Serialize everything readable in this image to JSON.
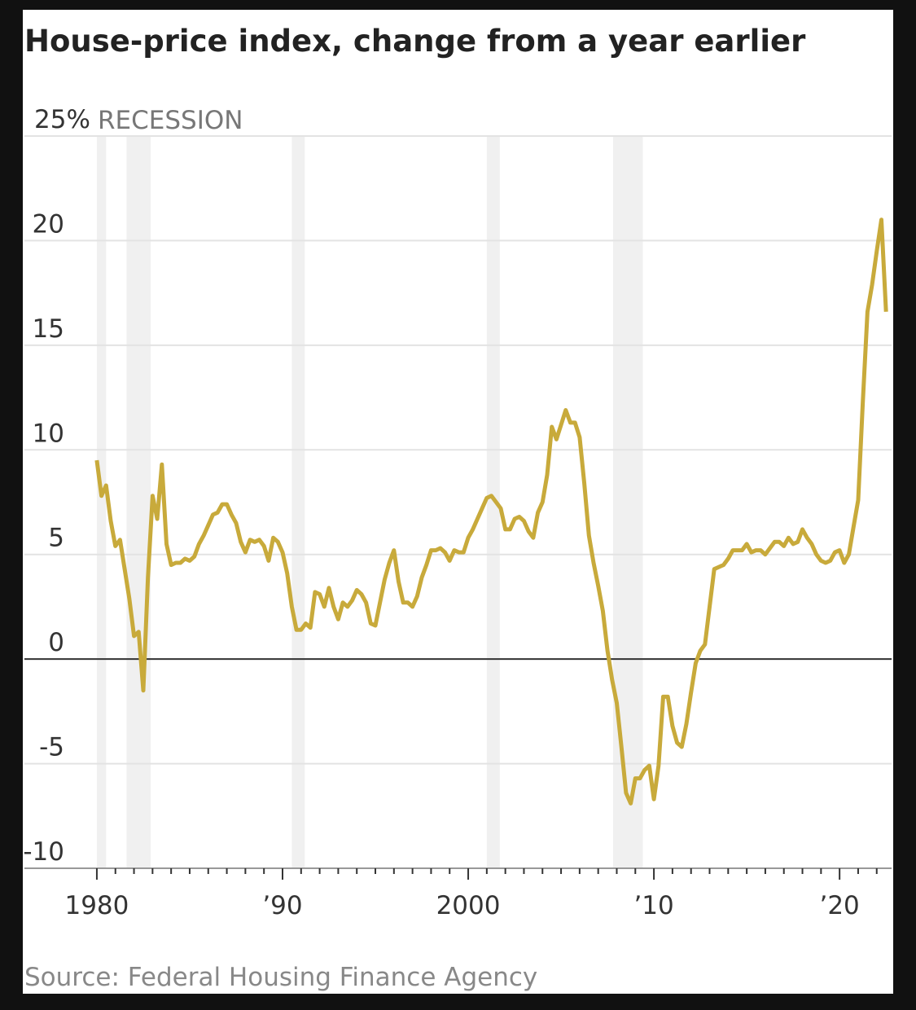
{
  "chart_data": {
    "type": "line",
    "title": "House-price index, change from a year earlier",
    "source": "Source: Federal Housing Finance Agency",
    "recession_label": "RECESSION",
    "recessions": [
      [
        1980.0,
        1980.5
      ],
      [
        1981.6,
        1982.9
      ],
      [
        1990.5,
        1991.2
      ],
      [
        2001.0,
        2001.7
      ],
      [
        2007.8,
        2009.4
      ]
    ],
    "recession_color": "#f0f0f0",
    "xlim": [
      1976.1,
      2022.8
    ],
    "ylim": [
      -10,
      25
    ],
    "yticks": [
      -10,
      -5,
      0,
      5,
      10,
      15,
      20,
      {
        "value": 25,
        "label": "25%"
      }
    ],
    "xticks": [
      1980,
      {
        "value": 1990,
        "label": "’90"
      },
      2000,
      {
        "value": 2010,
        "label": "’10"
      },
      {
        "value": 2020,
        "label": "’20"
      }
    ],
    "xminorticks": [
      1981,
      1982,
      1983,
      1984,
      1985,
      1986,
      1987,
      1988,
      1989,
      1991,
      1992,
      1993,
      1994,
      1995,
      1996,
      1997,
      1998,
      1999,
      2001,
      2002,
      2003,
      2004,
      2005,
      2006,
      2007,
      2008,
      2009,
      2011,
      2012,
      2013,
      2014,
      2015,
      2016,
      2017,
      2018,
      2019,
      2021,
      2022
    ],
    "grid": true,
    "hline": 0,
    "x": [
      1980,
      1980.25,
      1980.5,
      1980.75,
      1981,
      1981.25,
      1981.5,
      1981.75,
      1982,
      1982.25,
      1982.5,
      1982.75,
      1983,
      1983.25,
      1983.5,
      1983.75,
      1984,
      1984.25,
      1984.5,
      1984.75,
      1985,
      1985.25,
      1985.5,
      1985.75,
      1986,
      1986.25,
      1986.5,
      1986.75,
      1987,
      1987.25,
      1987.5,
      1987.75,
      1988,
      1988.25,
      1988.5,
      1988.75,
      1989,
      1989.25,
      1989.5,
      1989.75,
      1990,
      1990.25,
      1990.5,
      1990.75,
      1991,
      1991.25,
      1991.5,
      1991.75,
      1992,
      1992.25,
      1992.5,
      1992.75,
      1993,
      1993.25,
      1993.5,
      1993.75,
      1994,
      1994.25,
      1994.5,
      1994.75,
      1995,
      1995.25,
      1995.5,
      1995.75,
      1996,
      1996.25,
      1996.5,
      1996.75,
      1997,
      1997.25,
      1997.5,
      1997.75,
      1998,
      1998.25,
      1998.5,
      1998.75,
      1999,
      1999.25,
      1999.5,
      1999.75,
      2000,
      2000.25,
      2000.5,
      2000.75,
      2001,
      2001.25,
      2001.5,
      2001.75,
      2002,
      2002.25,
      2002.5,
      2002.75,
      2003,
      2003.25,
      2003.5,
      2003.75,
      2004,
      2004.25,
      2004.5,
      2004.75,
      2005,
      2005.25,
      2005.5,
      2005.75,
      2006,
      2006.25,
      2006.5,
      2006.75,
      2007,
      2007.25,
      2007.5,
      2007.75,
      2008,
      2008.25,
      2008.5,
      2008.75,
      2009,
      2009.25,
      2009.5,
      2009.75,
      2010,
      2010.25,
      2010.5,
      2010.75,
      2011,
      2011.25,
      2011.5,
      2011.75,
      2012,
      2012.25,
      2012.5,
      2012.75,
      2013,
      2013.25,
      2013.5,
      2013.75,
      2014,
      2014.25,
      2014.5,
      2014.75,
      2015,
      2015.25,
      2015.5,
      2015.75,
      2016,
      2016.25,
      2016.5,
      2016.75,
      2017,
      2017.25,
      2017.5,
      2017.75,
      2018,
      2018.25,
      2018.5,
      2018.75,
      2019,
      2019.25,
      2019.5,
      2019.75,
      2020,
      2020.25,
      2020.5,
      2020.75,
      2021,
      2021.25,
      2021.5,
      2021.75,
      2022,
      2022.25,
      2022.5
    ],
    "series": [
      {
        "color": "#c8aa3b",
        "values": [
          9.5,
          7.8,
          8.3,
          6.6,
          5.4,
          5.7,
          4.3,
          2.9,
          1.1,
          1.3,
          -1.5,
          3.9,
          7.8,
          6.7,
          9.3,
          5.5,
          4.5,
          4.6,
          4.6,
          4.8,
          4.7,
          4.9,
          5.5,
          5.9,
          6.4,
          6.9,
          7.0,
          7.4,
          7.4,
          6.9,
          6.5,
          5.6,
          5.1,
          5.7,
          5.6,
          5.7,
          5.4,
          4.7,
          5.8,
          5.6,
          5.1,
          4.1,
          2.5,
          1.4,
          1.4,
          1.7,
          1.5,
          3.2,
          3.1,
          2.5,
          3.4,
          2.5,
          1.9,
          2.7,
          2.5,
          2.8,
          3.3,
          3.1,
          2.7,
          1.7,
          1.6,
          2.7,
          3.8,
          4.6,
          5.2,
          3.7,
          2.7,
          2.7,
          2.5,
          3.0,
          3.9,
          4.5,
          5.2,
          5.2,
          5.3,
          5.1,
          4.7,
          5.2,
          5.1,
          5.1,
          5.8,
          6.2,
          6.7,
          7.2,
          7.7,
          7.8,
          7.5,
          7.2,
          6.2,
          6.2,
          6.7,
          6.8,
          6.6,
          6.1,
          5.8,
          7.0,
          7.5,
          8.8,
          11.1,
          10.5,
          11.2,
          11.9,
          11.3,
          11.3,
          10.6,
          8.4,
          5.9,
          4.6,
          3.5,
          2.3,
          0.4,
          -1.0,
          -2.1,
          -4.2,
          -6.4,
          -6.9,
          -5.7,
          -5.7,
          -5.3,
          -5.1,
          -6.7,
          -5.1,
          -1.8,
          -1.8,
          -3.2,
          -4.0,
          -4.2,
          -3.1,
          -1.6,
          -0.2,
          0.4,
          0.7,
          2.5,
          4.3,
          4.4,
          4.5,
          4.8,
          5.2,
          5.2,
          5.2,
          5.5,
          5.1,
          5.2,
          5.2,
          5.0,
          5.3,
          5.6,
          5.6,
          5.4,
          5.8,
          5.5,
          5.6,
          6.2,
          5.8,
          5.5,
          5.0,
          4.7,
          4.6,
          4.7,
          5.1,
          5.2,
          4.6,
          5.0,
          6.3,
          7.6,
          12.3,
          16.6,
          17.9,
          19.5,
          21.0,
          16.6
        ]
      }
    ]
  }
}
